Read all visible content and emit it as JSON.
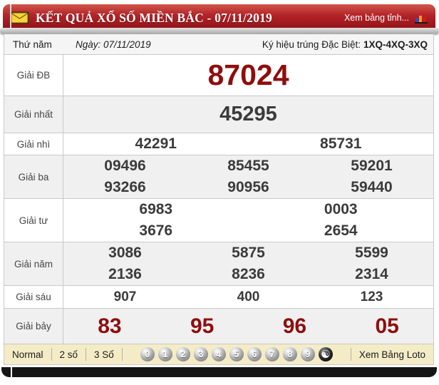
{
  "header": {
    "title": "KẾT QUẢ XỔ SỐ MIỀN BẮC - 07/11/2019",
    "tinh_link": "Xem bảng tỉnh..."
  },
  "info_row": {
    "day": "Thứ năm",
    "date": "Ngày: 07/11/2019",
    "special_label": "Ký hiệu trúng Đặc Biệt:",
    "special_value": "1XQ-4XQ-3XQ"
  },
  "prizes": [
    {
      "label": "Giải ĐB",
      "style": "db",
      "rows": [
        [
          "87024"
        ]
      ]
    },
    {
      "label": "Giải nhất",
      "style": "first",
      "rows": [
        [
          "45295"
        ]
      ]
    },
    {
      "label": "Giải nhì",
      "style": "mid",
      "rows": [
        [
          "42291",
          "85731"
        ]
      ]
    },
    {
      "label": "Giải ba",
      "style": "mid",
      "rows": [
        [
          "09496",
          "85455",
          "59201"
        ],
        [
          "93266",
          "90956",
          "59440"
        ]
      ]
    },
    {
      "label": "Giải tư",
      "style": "mid",
      "rows": [
        [
          "6983",
          "0003"
        ],
        [
          "3676",
          "2654"
        ]
      ]
    },
    {
      "label": "Giải năm",
      "style": "mid",
      "rows": [
        [
          "3086",
          "5875",
          "5599"
        ],
        [
          "2136",
          "8236",
          "2314"
        ]
      ]
    },
    {
      "label": "Giải sáu",
      "style": "six",
      "rows": [
        [
          "907",
          "400",
          "123"
        ]
      ]
    },
    {
      "label": "Giải bảy",
      "style": "seven",
      "rows": [
        [
          "83",
          "95",
          "96",
          "05"
        ]
      ]
    }
  ],
  "footer": {
    "modes": [
      "Normal",
      "2 số",
      "3 Số"
    ],
    "balls": [
      "0",
      "1",
      "2",
      "3",
      "4",
      "5",
      "6",
      "7",
      "8",
      "9"
    ],
    "yinyang": "☯",
    "loto_link": "Xem Bảng Loto"
  },
  "colors": {
    "header_red": "#a91e22",
    "special_number_red": "#8e0e0e",
    "number_dark": "#3b3b3b",
    "row_alt_gray": "#f0f0f0",
    "footer_cream": "#f3ecc6"
  }
}
